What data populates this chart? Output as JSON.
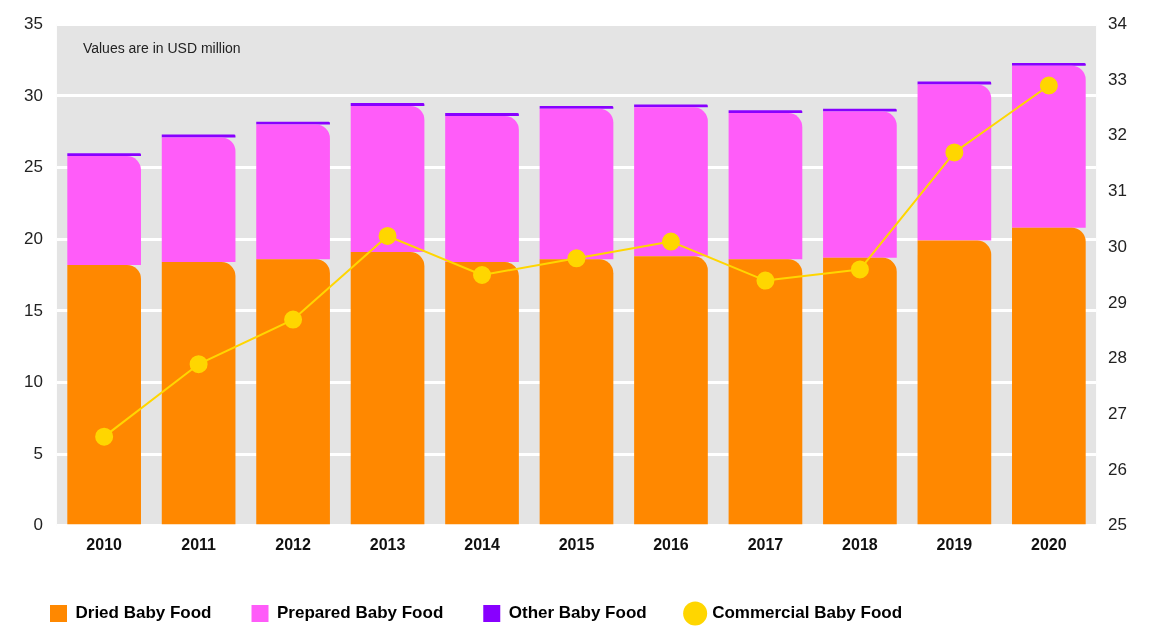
{
  "chart_data": {
    "type": "bar",
    "stacked": true,
    "categories": [
      "2010",
      "2011",
      "2012",
      "2013",
      "2014",
      "2015",
      "2016",
      "2017",
      "2018",
      "2019",
      "2020"
    ],
    "series": [
      {
        "name": "Dried Baby Food",
        "color": "#ff8800",
        "values": [
          18.2,
          18.4,
          18.6,
          19.1,
          18.4,
          18.6,
          18.8,
          18.6,
          18.7,
          19.9,
          20.8
        ]
      },
      {
        "name": "Prepared Baby Food",
        "color": "#ff5cf9",
        "values": [
          7.6,
          8.7,
          9.4,
          10.2,
          10.2,
          10.5,
          10.4,
          10.2,
          10.2,
          10.9,
          11.3
        ]
      },
      {
        "name": "Other Baby Food",
        "color": "#8800ff",
        "values": [
          0.2,
          0.2,
          0.2,
          0.2,
          0.2,
          0.2,
          0.2,
          0.2,
          0.2,
          0.2,
          0.2
        ]
      },
      {
        "name": "Commercial Baby Food",
        "type": "line",
        "axis": "y2",
        "color": "#ffd600",
        "values": [
          26.6,
          27.9,
          28.7,
          30.2,
          29.5,
          29.8,
          30.1,
          29.4,
          29.6,
          31.7,
          32.9
        ]
      }
    ],
    "ylim": [
      0,
      35
    ],
    "yticks": [
      0,
      5,
      10,
      15,
      20,
      25,
      30,
      35
    ],
    "y2lim": [
      25,
      34
    ],
    "y2ticks": [
      25,
      26,
      27,
      28,
      29,
      30,
      31,
      32,
      33,
      34
    ],
    "annotations": [
      "Values are in USD million"
    ],
    "grid": "y",
    "legend": "bottom",
    "marker": "circle",
    "line_style": "solid"
  }
}
